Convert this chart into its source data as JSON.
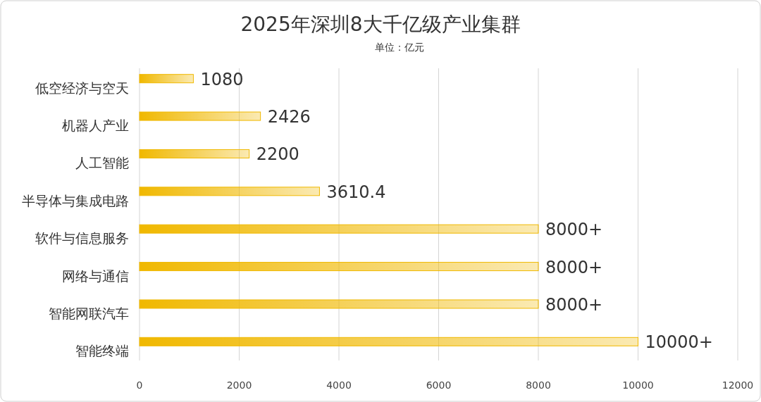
{
  "chart_data": {
    "type": "bar",
    "orientation": "horizontal",
    "title": "2025年深圳8大千亿级产业集群",
    "subtitle": "单位：亿元",
    "categories": [
      "低空经济与空天",
      "机器人产业",
      "人工智能",
      "半导体与集成电路",
      "软件与信息服务",
      "网络与通信",
      "智能网联汽车",
      "智能终端"
    ],
    "values": [
      1080,
      2426,
      2200,
      3610.4,
      8000,
      8000,
      8000,
      10000
    ],
    "value_labels": [
      "1080",
      "2426",
      "2200",
      "3610.4",
      "8000+",
      "8000+",
      "8000+",
      "10000+"
    ],
    "color": "#f0b800",
    "xlim": [
      0,
      12000
    ],
    "xticks": [
      0,
      2000,
      4000,
      6000,
      8000,
      10000,
      12000
    ],
    "grid": "x"
  }
}
